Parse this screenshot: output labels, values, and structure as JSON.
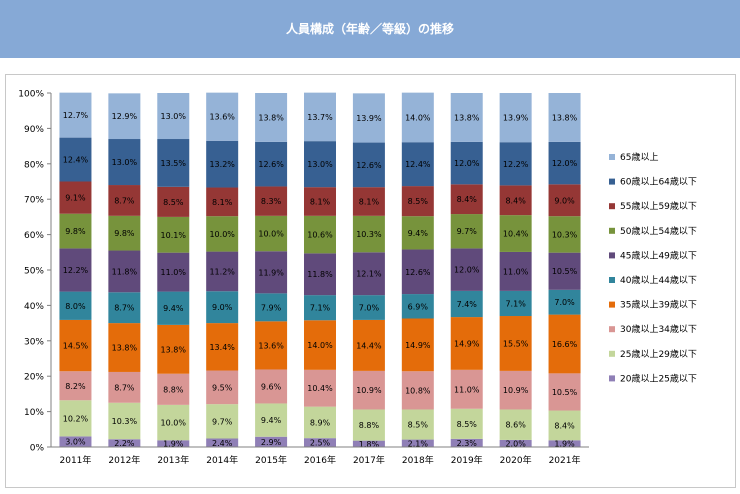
{
  "page": {
    "title": "人員構成（年齢／等級）の推移"
  },
  "chart_data": {
    "type": "bar",
    "stacked": "percent",
    "categories": [
      "2011年",
      "2012年",
      "2013年",
      "2014年",
      "2015年",
      "2016年",
      "2017年",
      "2018年",
      "2019年",
      "2020年",
      "2021年"
    ],
    "y_ticks": [
      "0%",
      "10%",
      "20%",
      "30%",
      "40%",
      "50%",
      "60%",
      "70%",
      "80%",
      "90%",
      "100%"
    ],
    "ylim": [
      0,
      100
    ],
    "grid": false,
    "legend_position": "right",
    "series": [
      {
        "name": "20歳以上25歳以下",
        "color": "#8f7fb6",
        "values": [
          3.0,
          2.2,
          1.9,
          2.4,
          2.9,
          2.5,
          1.8,
          2.1,
          2.3,
          2.0,
          1.9
        ],
        "labels": [
          "3.0%",
          "2.2%",
          "1.9%",
          "2.4%",
          "2.9%",
          "2.5%",
          "1.8%",
          "2.1%",
          "2.3%",
          "2.0%",
          "1.9%"
        ]
      },
      {
        "name": "25歳以上29歳以下",
        "color": "#c3d69b",
        "values": [
          10.2,
          10.3,
          10.0,
          9.7,
          9.4,
          8.9,
          8.8,
          8.5,
          8.5,
          8.6,
          8.4
        ],
        "labels": [
          "10.2%",
          "10.3%",
          "10.0%",
          "9.7%",
          "9.4%",
          "8.9%",
          "8.8%",
          "8.5%",
          "8.5%",
          "8.6%",
          "8.4%"
        ]
      },
      {
        "name": "30歳以上34歳以下",
        "color": "#d99694",
        "values": [
          8.2,
          8.7,
          8.8,
          9.5,
          9.6,
          10.4,
          10.9,
          10.8,
          11.0,
          10.9,
          10.5
        ],
        "labels": [
          "8.2%",
          "8.7%",
          "8.8%",
          "9.5%",
          "9.6%",
          "10.4%",
          "10.9%",
          "10.8%",
          "11.0%",
          "10.9%",
          "10.5%"
        ]
      },
      {
        "name": "35歳以上39歳以下",
        "color": "#e46c0a",
        "values": [
          14.5,
          13.8,
          13.8,
          13.4,
          13.6,
          14.0,
          14.4,
          14.9,
          14.9,
          15.5,
          16.6
        ],
        "labels": [
          "14.5%",
          "13.8%",
          "13.8%",
          "13.4%",
          "13.6%",
          "14.0%",
          "14.4%",
          "14.9%",
          "14.9%",
          "15.5%",
          "16.6%"
        ]
      },
      {
        "name": "40歳以上44歳以下",
        "color": "#31859c",
        "values": [
          8.0,
          8.7,
          9.4,
          9.0,
          7.9,
          7.1,
          7.0,
          6.9,
          7.4,
          7.1,
          7.0
        ],
        "labels": [
          "8.0%",
          "8.7%",
          "9.4%",
          "9.0%",
          "7.9%",
          "7.1%",
          "7.0%",
          "6.9%",
          "7.4%",
          "7.1%",
          "7.0%"
        ]
      },
      {
        "name": "45歳以上49歳以下",
        "color": "#604a7b",
        "values": [
          12.2,
          11.8,
          11.0,
          11.2,
          11.9,
          11.8,
          12.1,
          12.6,
          12.0,
          11.0,
          10.5
        ],
        "labels": [
          "12.2%",
          "11.8%",
          "11.0%",
          "11.2%",
          "11.9%",
          "11.8%",
          "12.1%",
          "12.6%",
          "12.0%",
          "11.0%",
          "10.5%"
        ]
      },
      {
        "name": "50歳以上54歳以下",
        "color": "#77933c",
        "values": [
          9.8,
          9.8,
          10.1,
          10.0,
          10.0,
          10.6,
          10.3,
          9.4,
          9.7,
          10.4,
          10.3
        ],
        "labels": [
          "9.8%",
          "9.8%",
          "10.1%",
          "10.0%",
          "10.0%",
          "10.6%",
          "10.3%",
          "9.4%",
          "9.7%",
          "10.4%",
          "10.3%"
        ]
      },
      {
        "name": "55歳以上59歳以下",
        "color": "#953735",
        "values": [
          9.1,
          8.7,
          8.5,
          8.1,
          8.3,
          8.1,
          8.1,
          8.5,
          8.4,
          8.4,
          9.0
        ],
        "labels": [
          "9.1%",
          "8.7%",
          "8.5%",
          "8.1%",
          "8.3%",
          "8.1%",
          "8.1%",
          "8.5%",
          "8.4%",
          "8.4%",
          "9.0%"
        ]
      },
      {
        "name": "60歳以上64歳以下",
        "color": "#376092",
        "values": [
          12.4,
          13.0,
          13.5,
          13.2,
          12.6,
          13.0,
          12.6,
          12.4,
          12.0,
          12.2,
          12.0
        ],
        "labels": [
          "12.4%",
          "13.0%",
          "13.5%",
          "13.2%",
          "12.6%",
          "13.0%",
          "12.6%",
          "12.4%",
          "12.0%",
          "12.2%",
          "12.0%"
        ]
      },
      {
        "name": "65歳以上",
        "color": "#95b3d7",
        "values": [
          12.7,
          12.9,
          13.0,
          13.6,
          13.8,
          13.7,
          13.9,
          14.0,
          13.8,
          13.9,
          13.8
        ],
        "labels": [
          "12.7%",
          "12.9%",
          "13.0%",
          "13.6%",
          "13.8%",
          "13.7%",
          "13.9%",
          "14.0%",
          "13.8%",
          "13.9%",
          "13.8%"
        ]
      }
    ]
  }
}
